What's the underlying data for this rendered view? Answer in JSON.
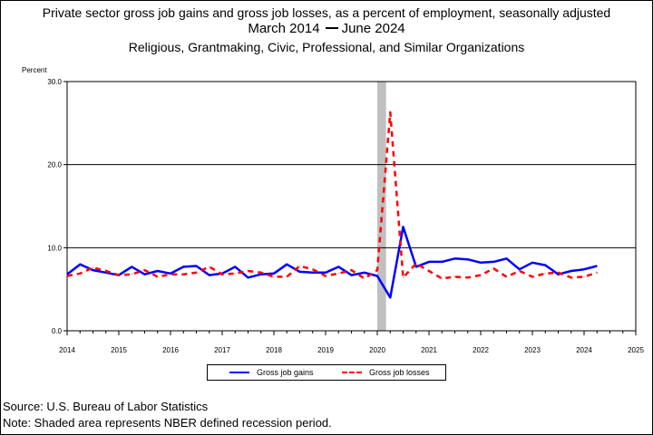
{
  "titles": {
    "line1": "Private sector gross job gains and gross job losses, as a percent of employment, seasonally adjusted",
    "line2_start": "March 2014",
    "line2_end": "June 2024",
    "line3": "Religious, Grantmaking, Civic, Professional, and Similar Organizations"
  },
  "footer": {
    "source": "Source: U.S. Bureau of Labor Statistics",
    "note": "Note: Shaded area represents NBER defined recession period."
  },
  "colors": {
    "gains": "#0000ff",
    "losses": "#ff0000",
    "recession": "#c0c0c0"
  },
  "chart_data": {
    "type": "line",
    "ylabel": "Percent",
    "ylim": [
      0,
      30
    ],
    "yticks": [
      "0.0",
      "10.0",
      "20.0",
      "30.0"
    ],
    "xlim": [
      2014,
      2025
    ],
    "xticks": [
      "2014",
      "2015",
      "2016",
      "2017",
      "2018",
      "2019",
      "2020",
      "2021",
      "2022",
      "2023",
      "2024",
      "2025"
    ],
    "gridlines": "horizontal",
    "recession": {
      "start": 2020.0,
      "end": 2020.17
    },
    "legend": {
      "position": "bottom-center"
    },
    "x": [
      2014.0,
      2014.25,
      2014.5,
      2014.75,
      2015.0,
      2015.25,
      2015.5,
      2015.75,
      2016.0,
      2016.25,
      2016.5,
      2016.75,
      2017.0,
      2017.25,
      2017.5,
      2017.75,
      2018.0,
      2018.25,
      2018.5,
      2018.75,
      2019.0,
      2019.25,
      2019.5,
      2019.75,
      2020.0,
      2020.25,
      2020.5,
      2020.75,
      2021.0,
      2021.25,
      2021.5,
      2021.75,
      2022.0,
      2022.25,
      2022.5,
      2022.75,
      2023.0,
      2023.25,
      2023.5,
      2023.75,
      2024.0,
      2024.25
    ],
    "series": [
      {
        "name": "Gross job gains",
        "style": "solid",
        "values": [
          6.8,
          8.0,
          7.3,
          7.0,
          6.7,
          7.7,
          6.8,
          7.2,
          6.9,
          7.7,
          7.8,
          6.7,
          6.9,
          7.7,
          6.4,
          6.8,
          6.9,
          8.0,
          7.1,
          7.0,
          7.0,
          7.7,
          6.7,
          7.0,
          6.6,
          4.0,
          12.5,
          7.7,
          8.3,
          8.3,
          8.7,
          8.6,
          8.2,
          8.3,
          8.7,
          7.4,
          8.2,
          7.9,
          6.8,
          7.2,
          7.4,
          7.8
        ]
      },
      {
        "name": "Gross job losses",
        "style": "dashed",
        "values": [
          6.6,
          6.9,
          7.6,
          7.2,
          6.7,
          6.8,
          7.3,
          6.5,
          6.8,
          6.8,
          7.0,
          7.7,
          6.8,
          6.9,
          7.2,
          7.0,
          6.5,
          6.5,
          7.8,
          7.4,
          6.6,
          6.9,
          7.3,
          6.3,
          7.3,
          26.3,
          6.4,
          8.1,
          7.2,
          6.3,
          6.5,
          6.4,
          6.7,
          7.5,
          6.5,
          7.2,
          6.5,
          6.9,
          7.0,
          6.4,
          6.5,
          7.0
        ]
      }
    ]
  }
}
